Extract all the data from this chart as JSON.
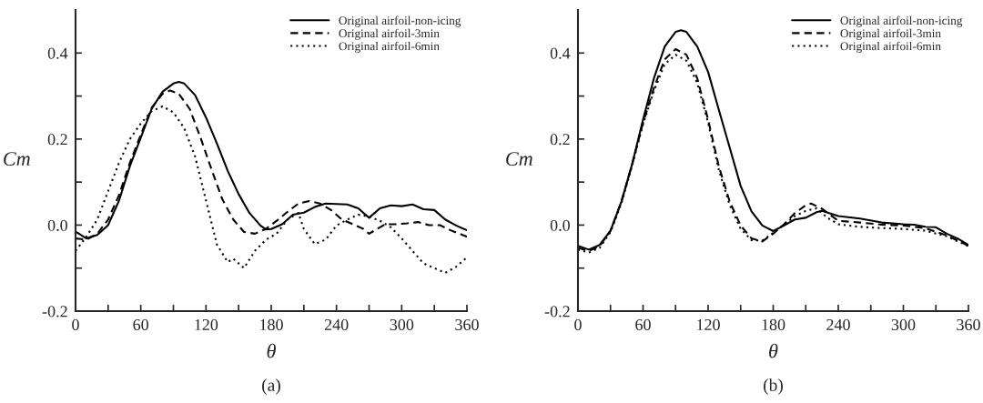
{
  "chart_data": [
    {
      "type": "line",
      "xlabel": "θ",
      "ylabel": "Cm",
      "annotations": [
        "(a)"
      ],
      "xlim": [
        0,
        360
      ],
      "ylim": [
        -0.2,
        0.5
      ],
      "xticks": [
        0,
        {
          "value": 30,
          "label": null
        },
        60,
        {
          "value": 90,
          "label": null
        },
        120,
        {
          "value": 150,
          "label": null
        },
        180,
        {
          "value": 210,
          "label": null
        },
        240,
        {
          "value": 270,
          "label": null
        },
        300,
        {
          "value": 330,
          "label": null
        },
        360
      ],
      "yticks": [
        {
          "value": -0.2,
          "label": "-0.2"
        },
        {
          "value": -0.1,
          "label": null
        },
        {
          "value": 0,
          "label": "0.0"
        },
        {
          "value": 0.1,
          "label": null
        },
        {
          "value": 0.2,
          "label": "0.2"
        },
        {
          "value": 0.3,
          "label": null
        },
        {
          "value": 0.4,
          "label": "0.4"
        }
      ],
      "grid": false,
      "legend": "top right",
      "marker": "none",
      "series": [
        {
          "name": "Original airfoil-non-icing",
          "color": "#000000",
          "line_style": "solid",
          "x": [
            0,
            10,
            20,
            30,
            40,
            50,
            60,
            70,
            80,
            90,
            95,
            100,
            110,
            120,
            130,
            140,
            150,
            160,
            170,
            175,
            180,
            190,
            200,
            210,
            220,
            230,
            250,
            260,
            270,
            280,
            290,
            300,
            310,
            320,
            330,
            340,
            350,
            360
          ],
          "values": [
            -0.015,
            -0.031,
            -0.023,
            0.0,
            0.057,
            0.137,
            0.203,
            0.27,
            0.31,
            0.329,
            0.333,
            0.329,
            0.302,
            0.25,
            0.19,
            0.126,
            0.072,
            0.028,
            -0.001,
            -0.01,
            -0.009,
            0.002,
            0.024,
            0.029,
            0.042,
            0.05,
            0.048,
            0.039,
            0.017,
            0.039,
            0.046,
            0.044,
            0.048,
            0.037,
            0.035,
            0.013,
            -0.001,
            -0.012
          ]
        },
        {
          "name": "Original airfoil-3min",
          "color": "#000000",
          "line_style": "dashed",
          "x": [
            0,
            10,
            20,
            30,
            40,
            50,
            60,
            70,
            80,
            87,
            95,
            105,
            115,
            125,
            135,
            145,
            155,
            165,
            175,
            185,
            195,
            205,
            215,
            225,
            235,
            245,
            255,
            265,
            270,
            285,
            295,
            305,
            315,
            325,
            335,
            345,
            360
          ],
          "values": [
            -0.031,
            -0.034,
            -0.02,
            0.013,
            0.07,
            0.145,
            0.21,
            0.273,
            0.305,
            0.313,
            0.305,
            0.27,
            0.203,
            0.13,
            0.06,
            0.013,
            -0.016,
            -0.02,
            -0.009,
            0.01,
            0.031,
            0.05,
            0.056,
            0.05,
            0.035,
            0.013,
            0.002,
            -0.009,
            -0.02,
            0.002,
            0.002,
            0.004,
            0.007,
            0.0,
            0.0,
            -0.012,
            -0.027
          ]
        },
        {
          "name": "Original airfoil-6min",
          "color": "#000000",
          "line_style": "dotted",
          "x": [
            0,
            10,
            20,
            30,
            40,
            50,
            60,
            70,
            80,
            90,
            100,
            110,
            120,
            130,
            140,
            145,
            155,
            165,
            175,
            185,
            195,
            205,
            210,
            220,
            230,
            240,
            250,
            260,
            270,
            280,
            290,
            300,
            310,
            320,
            330,
            340,
            350,
            360
          ],
          "values": [
            -0.06,
            -0.027,
            0.013,
            0.079,
            0.145,
            0.2,
            0.236,
            0.265,
            0.276,
            0.262,
            0.225,
            0.159,
            0.057,
            -0.045,
            -0.086,
            -0.078,
            -0.1,
            -0.06,
            -0.034,
            -0.02,
            0.013,
            0.028,
            -0.009,
            -0.044,
            -0.034,
            -0.001,
            0.013,
            0.024,
            0.02,
            0.01,
            -0.005,
            -0.031,
            -0.06,
            -0.089,
            -0.1,
            -0.111,
            -0.097,
            -0.075
          ]
        }
      ]
    },
    {
      "type": "line",
      "xlabel": "θ",
      "ylabel": "Cm",
      "annotations": [
        "(b)"
      ],
      "xlim": [
        0,
        360
      ],
      "ylim": [
        -0.2,
        0.5
      ],
      "xticks": [
        0,
        {
          "value": 30,
          "label": null
        },
        60,
        {
          "value": 90,
          "label": null
        },
        120,
        {
          "value": 150,
          "label": null
        },
        180,
        {
          "value": 210,
          "label": null
        },
        240,
        {
          "value": 270,
          "label": null
        },
        300,
        {
          "value": 330,
          "label": null
        },
        360
      ],
      "yticks": [
        {
          "value": -0.2,
          "label": "-0.2"
        },
        {
          "value": -0.1,
          "label": null
        },
        {
          "value": 0,
          "label": "0.0"
        },
        {
          "value": 0.1,
          "label": null
        },
        {
          "value": 0.2,
          "label": "0.2"
        },
        {
          "value": 0.3,
          "label": null
        },
        {
          "value": 0.4,
          "label": "0.4"
        }
      ],
      "grid": false,
      "legend": "top right",
      "marker": "none",
      "series": [
        {
          "name": "Original airfoil-non-icing",
          "color": "#000000",
          "line_style": "solid",
          "x": [
            0,
            10,
            20,
            30,
            40,
            50,
            60,
            70,
            80,
            90,
            95,
            100,
            110,
            120,
            130,
            140,
            150,
            160,
            170,
            180,
            190,
            200,
            210,
            220,
            225,
            240,
            260,
            280,
            300,
            310,
            320,
            330,
            340,
            350,
            360
          ],
          "values": [
            -0.048,
            -0.057,
            -0.046,
            -0.013,
            0.054,
            0.142,
            0.245,
            0.341,
            0.415,
            0.449,
            0.453,
            0.449,
            0.415,
            0.356,
            0.267,
            0.179,
            0.091,
            0.032,
            -0.001,
            -0.014,
            -0.001,
            0.013,
            0.017,
            0.03,
            0.033,
            0.021,
            0.015,
            0.006,
            0.002,
            0.001,
            -0.004,
            -0.005,
            -0.02,
            -0.031,
            -0.046
          ]
        },
        {
          "name": "Original airfoil-3min",
          "color": "#000000",
          "line_style": "dashed",
          "x": [
            0,
            10,
            20,
            30,
            40,
            50,
            60,
            70,
            80,
            90,
            100,
            110,
            120,
            130,
            140,
            150,
            160,
            170,
            180,
            190,
            200,
            210,
            215,
            225,
            240,
            260,
            280,
            300,
            320,
            340,
            360
          ],
          "values": [
            -0.053,
            -0.06,
            -0.049,
            -0.013,
            0.054,
            0.142,
            0.238,
            0.319,
            0.385,
            0.409,
            0.396,
            0.341,
            0.245,
            0.135,
            0.054,
            -0.001,
            -0.031,
            -0.038,
            -0.02,
            0.002,
            0.028,
            0.046,
            0.05,
            0.038,
            0.01,
            0.006,
            0.001,
            -0.001,
            -0.007,
            -0.024,
            -0.048
          ]
        },
        {
          "name": "Original airfoil-6min",
          "color": "#000000",
          "line_style": "dotted",
          "x": [
            0,
            10,
            20,
            30,
            40,
            50,
            60,
            70,
            80,
            90,
            100,
            110,
            120,
            130,
            140,
            150,
            160,
            170,
            180,
            190,
            200,
            210,
            220,
            230,
            240,
            260,
            280,
            300,
            320,
            340,
            360
          ],
          "values": [
            -0.057,
            -0.064,
            -0.053,
            -0.016,
            0.05,
            0.139,
            0.234,
            0.312,
            0.374,
            0.396,
            0.382,
            0.33,
            0.238,
            0.127,
            0.046,
            -0.009,
            -0.035,
            -0.036,
            -0.018,
            0.001,
            0.021,
            0.033,
            0.039,
            0.017,
            0.002,
            -0.004,
            -0.007,
            -0.009,
            -0.013,
            -0.026,
            -0.049
          ]
        }
      ]
    }
  ]
}
